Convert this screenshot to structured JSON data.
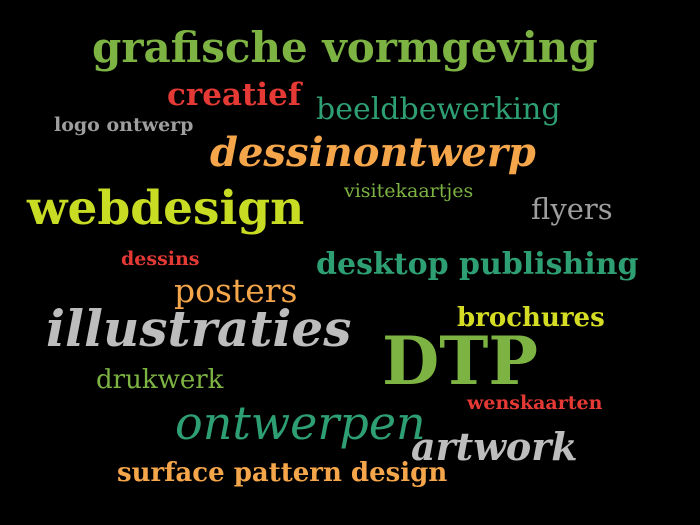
{
  "colors": {
    "background": "#000000",
    "green": "#7cb342",
    "red": "#e53935",
    "teal": "#2e9e73",
    "gray": "#9e9e9e",
    "light_gray": "#bdbdbd",
    "orange": "#f5a64a",
    "yellow_green": "#c8dc24",
    "yellow": "#d4dc23"
  },
  "words": {
    "grafische": "grafische vormgeving",
    "creatief": "creatief",
    "beeldbewerking": "beeldbewerking",
    "logo": "logo ontwerp",
    "dessinontwerp": "dessinontwerp",
    "visitekaartjes": "visitekaartjes",
    "webdesign": "webdesign",
    "flyers": "flyers",
    "dessins": "dessins",
    "desktop": "desktop publishing",
    "posters": "posters",
    "illustraties": "illustraties",
    "brochures": "brochures",
    "dtp": "DTP",
    "drukwerk": "drukwerk",
    "wenskaarten": "wenskaarten",
    "ontwerpen": "ontwerpen",
    "artwork": "artwork",
    "surface": "surface pattern design"
  }
}
